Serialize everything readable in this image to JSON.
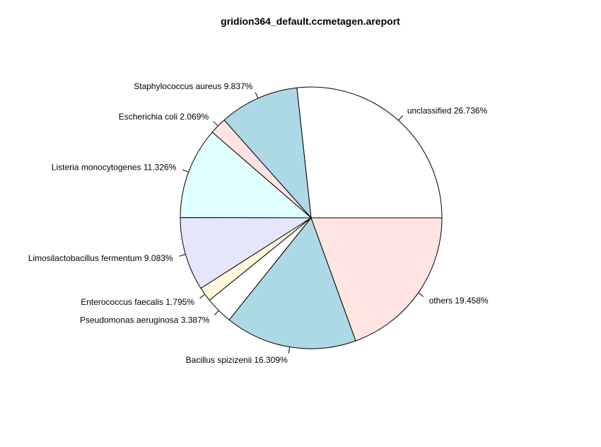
{
  "chart_data": {
    "type": "pie",
    "title": "gridion364_default.ccmetagen.areport",
    "direction": "counterclockwise",
    "start": "3 o'clock",
    "slices": [
      {
        "name": "unclassified",
        "value": 26.736,
        "label": "unclassified 26.736%",
        "color": "#ffffff"
      },
      {
        "name": "Staphylococcus aureus",
        "value": 9.837,
        "label": "Staphylococcus aureus 9.837%",
        "color": "#add8e6"
      },
      {
        "name": "Escherichia coli",
        "value": 2.069,
        "label": "Escherichia coli 2.069%",
        "color": "#ffe4e1"
      },
      {
        "name": "Listeria monocytogenes",
        "value": 11.326,
        "label": "Listeria monocytogenes 11.326%",
        "color": "#e0ffff"
      },
      {
        "name": "Limosilactobacillus fermentum",
        "value": 9.083,
        "label": "Limosilactobacillus fermentum 9.083%",
        "color": "#e6e6fa"
      },
      {
        "name": "Enterococcus faecalis",
        "value": 1.795,
        "label": "Enterococcus faecalis 1.795%",
        "color": "#fff8dc"
      },
      {
        "name": "Pseudomonas aeruginosa",
        "value": 3.387,
        "label": "Pseudomonas aeruginosa 3.387%",
        "color": "#ffffff"
      },
      {
        "name": "Bacillus spizizenii",
        "value": 16.309,
        "label": "Bacillus spizizenii 16.309%",
        "color": "#add8e6"
      },
      {
        "name": "others",
        "value": 19.458,
        "label": "others 19.458%",
        "color": "#ffe4e1"
      }
    ]
  }
}
